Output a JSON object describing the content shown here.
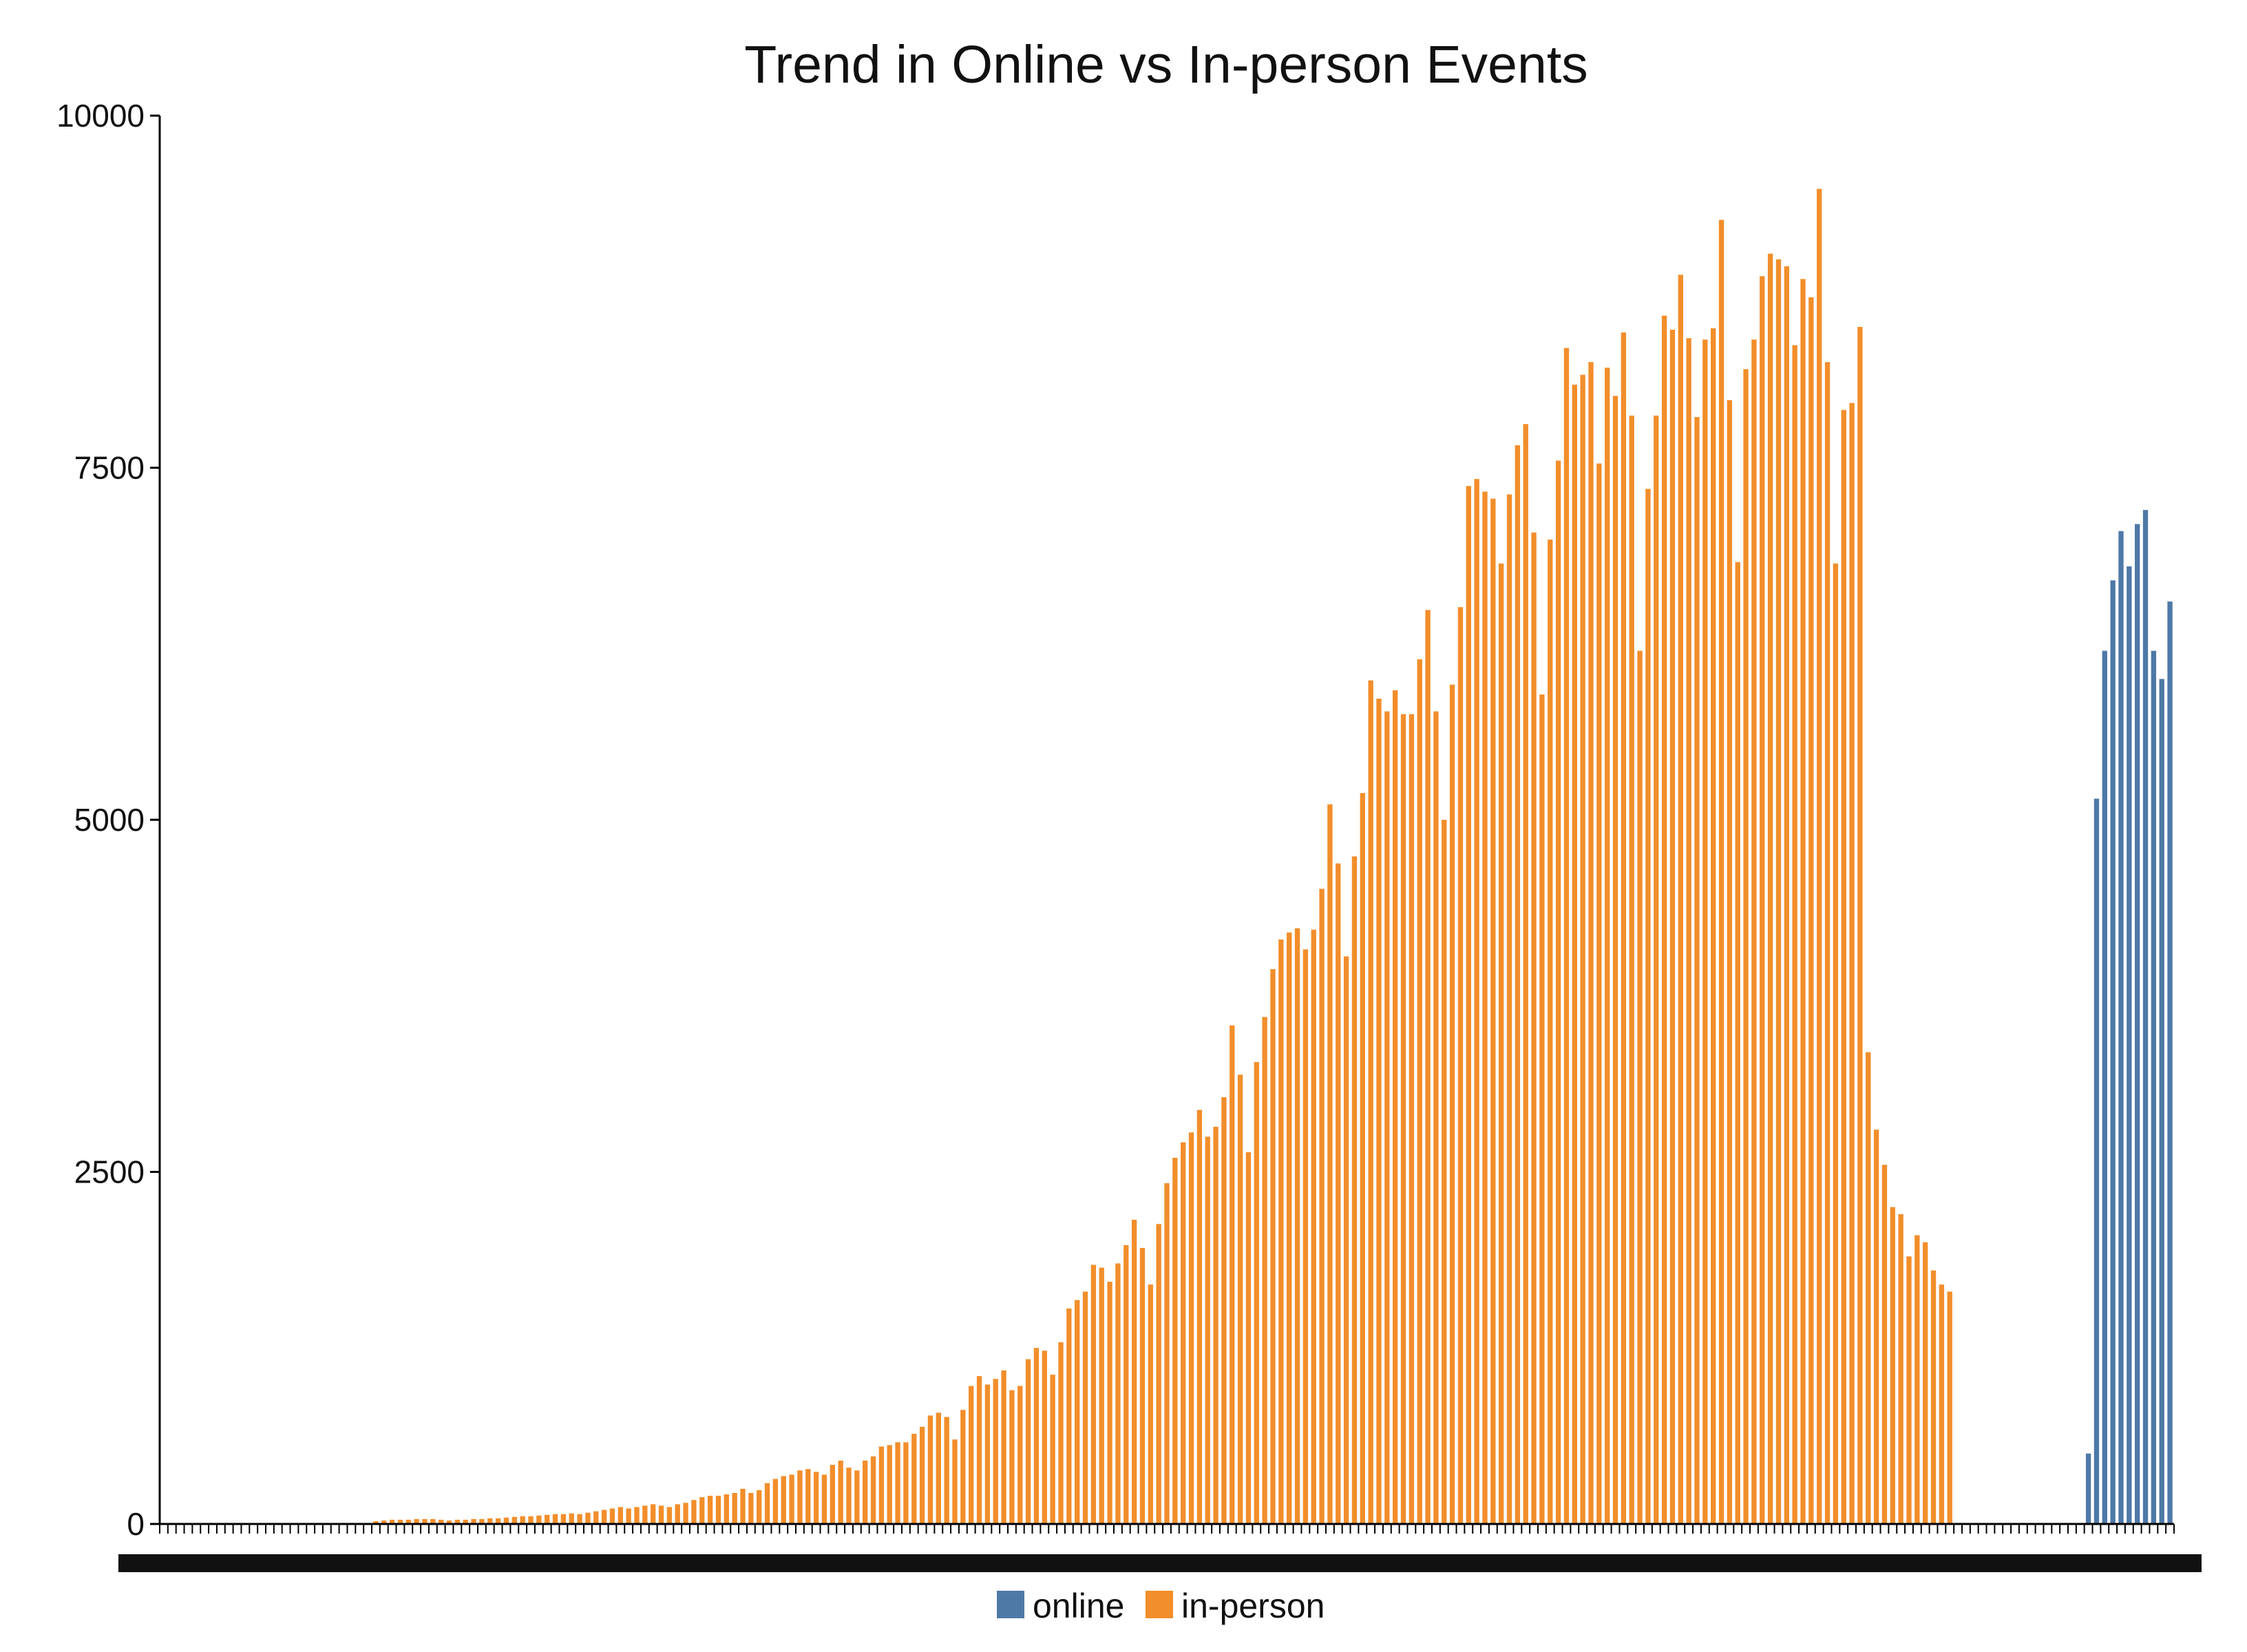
{
  "chart_data": {
    "type": "bar",
    "stacked": true,
    "title": "Trend in Online vs In-person Events",
    "xlabel": "",
    "ylabel": "",
    "ylim": [
      0,
      10000
    ],
    "yticks": [
      "0",
      "2500",
      "5000",
      "7500",
      "10000"
    ],
    "grid": false,
    "legend_position": "bottom-center",
    "colors": {
      "online": "#4e79a7",
      "in-person": "#f28e2b",
      "axis": "#000000"
    },
    "series": [
      {
        "name": "online",
        "values": [
          0,
          0,
          0,
          0,
          0,
          0,
          0,
          0,
          0,
          0,
          0,
          0,
          0,
          0,
          0,
          0,
          0,
          0,
          0,
          0,
          0,
          0,
          0,
          0,
          0,
          0,
          0,
          0,
          0,
          0,
          0,
          0,
          0,
          0,
          0,
          0,
          0,
          0,
          0,
          0,
          0,
          0,
          0,
          0,
          0,
          0,
          0,
          0,
          0,
          0,
          0,
          0,
          0,
          0,
          0,
          0,
          0,
          0,
          0,
          0,
          0,
          0,
          0,
          0,
          0,
          0,
          0,
          0,
          0,
          0,
          0,
          0,
          0,
          0,
          0,
          0,
          0,
          0,
          0,
          0,
          0,
          0,
          0,
          0,
          0,
          0,
          0,
          0,
          0,
          0,
          0,
          0,
          0,
          0,
          0,
          0,
          0,
          0,
          0,
          0,
          0,
          0,
          0,
          0,
          0,
          0,
          0,
          0,
          0,
          0,
          0,
          0,
          0,
          0,
          0,
          0,
          0,
          0,
          0,
          0,
          0,
          0,
          0,
          0,
          0,
          0,
          0,
          0,
          0,
          0,
          0,
          0,
          0,
          0,
          0,
          0,
          0,
          0,
          0,
          0,
          0,
          0,
          0,
          0,
          0,
          0,
          0,
          0,
          0,
          0,
          0,
          0,
          0,
          0,
          0,
          0,
          0,
          0,
          0,
          0,
          0,
          0,
          0,
          0,
          0,
          0,
          0,
          0,
          0,
          0,
          0,
          0,
          0,
          0,
          0,
          0,
          0,
          0,
          0,
          0,
          0,
          0,
          0,
          0,
          0,
          0,
          0,
          0,
          0,
          0,
          0,
          0,
          0,
          0,
          0,
          0,
          0,
          0,
          0,
          0,
          0,
          0,
          0,
          0,
          0,
          0,
          0,
          0,
          0,
          0,
          0,
          0,
          0,
          0,
          0,
          0,
          0,
          0,
          0,
          0,
          0,
          0,
          0,
          0,
          0,
          0,
          0,
          0,
          0,
          0,
          0,
          0,
          0,
          0,
          0,
          0,
          500,
          5150,
          6200,
          6700,
          7050,
          6800,
          7100,
          7200,
          6200,
          6000,
          6550
        ]
      },
      {
        "name": "in-person",
        "values": [
          0,
          0,
          0,
          0,
          0,
          0,
          0,
          0,
          0,
          0,
          0,
          0,
          0,
          0,
          0,
          0,
          0,
          0,
          0,
          0,
          0,
          0,
          0,
          0,
          0,
          0,
          20,
          25,
          30,
          30,
          30,
          35,
          35,
          35,
          30,
          25,
          30,
          30,
          35,
          35,
          40,
          40,
          45,
          50,
          55,
          55,
          60,
          65,
          70,
          70,
          75,
          70,
          80,
          90,
          100,
          110,
          120,
          110,
          120,
          130,
          140,
          130,
          120,
          140,
          150,
          170,
          190,
          200,
          200,
          210,
          220,
          250,
          220,
          240,
          290,
          320,
          340,
          350,
          380,
          390,
          370,
          350,
          420,
          450,
          400,
          380,
          450,
          480,
          550,
          560,
          580,
          580,
          640,
          690,
          770,
          790,
          760,
          600,
          810,
          980,
          1050,
          990,
          1030,
          1090,
          950,
          980,
          1170,
          1250,
          1230,
          1060,
          1290,
          1530,
          1590,
          1650,
          1840,
          1820,
          1720,
          1850,
          1980,
          2160,
          1960,
          1700,
          2130,
          2420,
          2600,
          2710,
          2780,
          2940,
          2750,
          2820,
          3030,
          3540,
          3190,
          2640,
          3280,
          3600,
          3940,
          4150,
          4200,
          4230,
          4080,
          4220,
          4510,
          5110,
          4690,
          4030,
          4740,
          5190,
          5990,
          5860,
          5770,
          5920,
          5750,
          5750,
          6140,
          6490,
          5770,
          5000,
          5960,
          6510,
          7370,
          7420,
          7330,
          7280,
          6820,
          7310,
          7660,
          7810,
          7040,
          5890,
          6990,
          7550,
          8350,
          8090,
          8160,
          8250,
          7530,
          8210,
          8010,
          8460,
          7870,
          6200,
          7350,
          7870,
          8580,
          8480,
          8870,
          8420,
          7860,
          8410,
          8490,
          9260,
          7980,
          6830,
          8200,
          8410,
          8860,
          9020,
          8980,
          8930,
          8370,
          8840,
          8710,
          9480,
          8250,
          6820,
          7910,
          7960,
          8500,
          3350,
          2800,
          2550,
          2250,
          2200,
          1900,
          2050,
          2000,
          1800,
          1700,
          1650
        ]
      }
    ],
    "x_tick_note": "233 overlapping tick labels along the x axis are illegible"
  }
}
